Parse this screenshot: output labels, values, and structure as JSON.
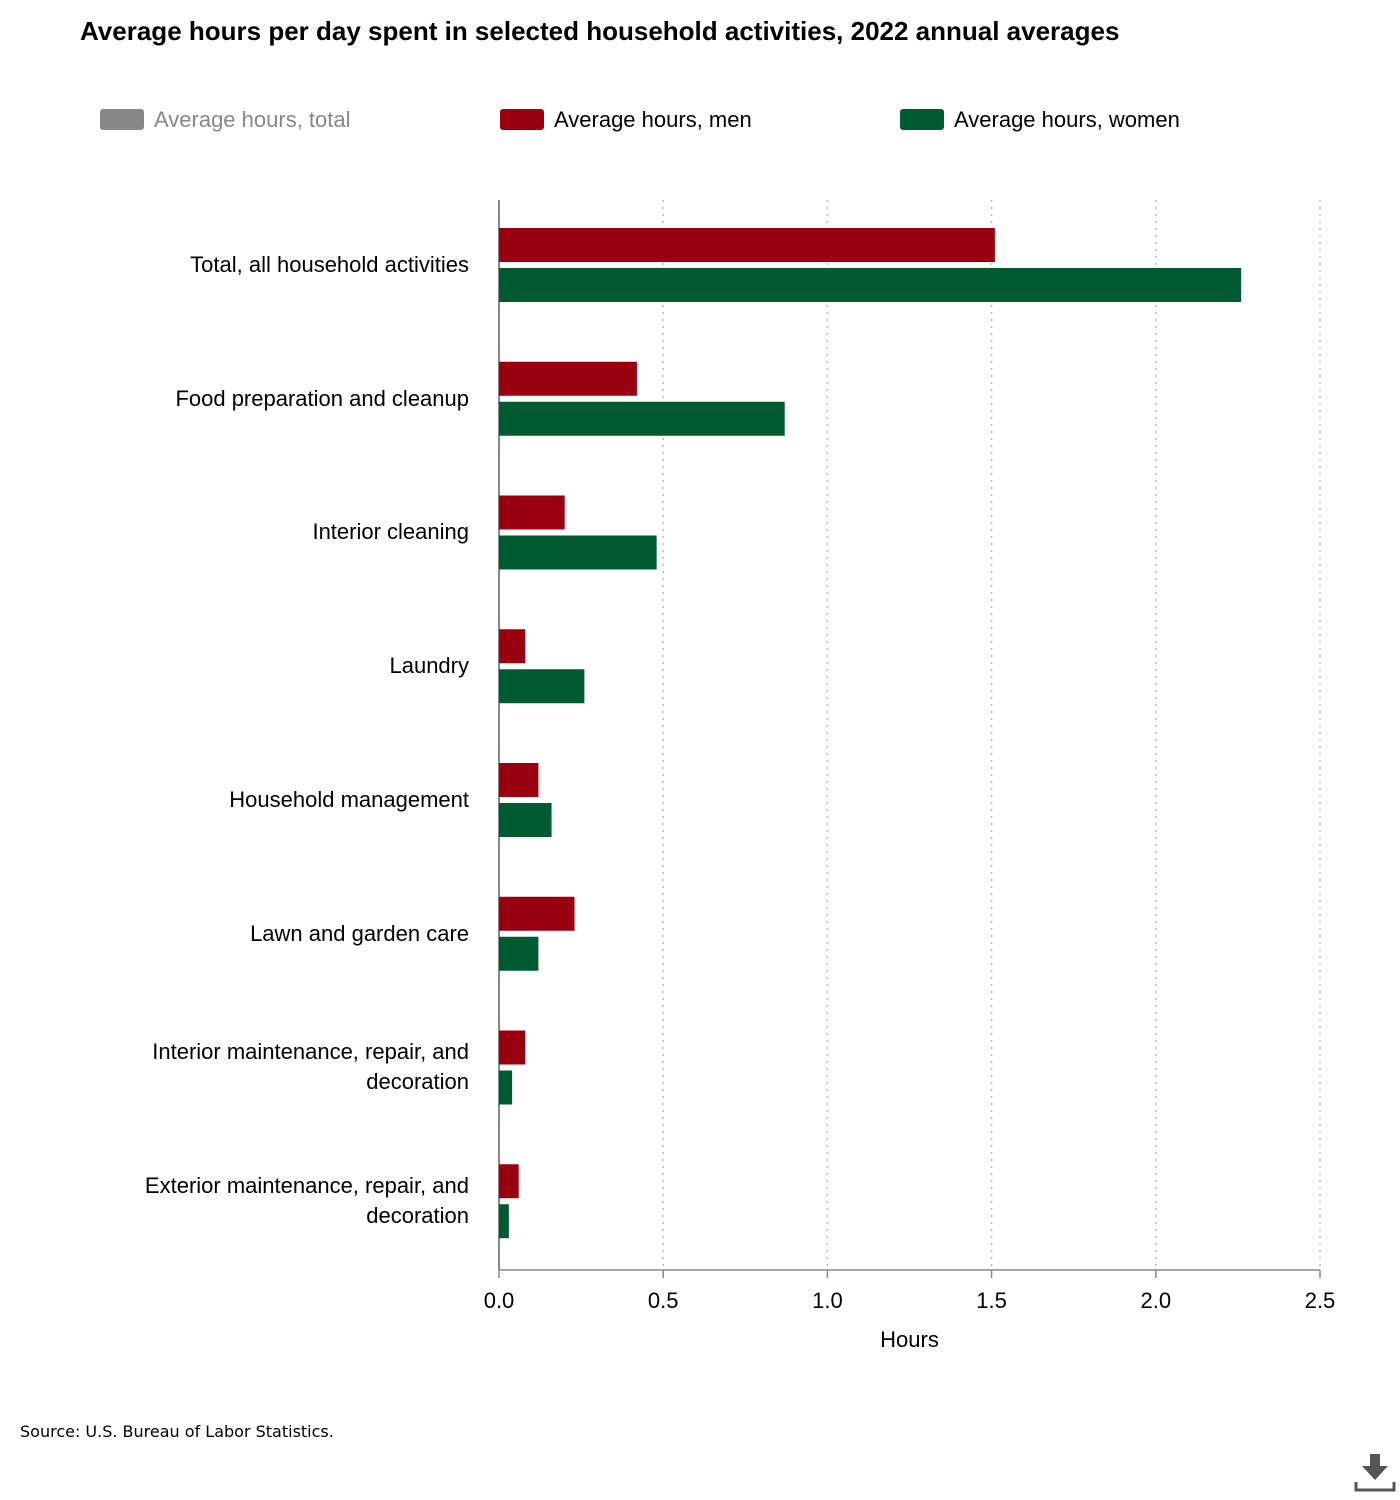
{
  "chart_data": {
    "type": "hbar",
    "title": "Average hours per day spent in selected household activities, 2022 annual averages",
    "categories": [
      "Total, all household activities",
      "Food preparation and cleanup",
      "Interior cleaning",
      "Laundry",
      "Household management",
      "Lawn and garden care",
      "Interior maintenance, repair, and decoration",
      "Exterior maintenance, repair, and decoration"
    ],
    "series": [
      {
        "name": "Average hours, total",
        "color": "#888888",
        "visible": false,
        "values": [
          null,
          null,
          null,
          null,
          null,
          null,
          null,
          null
        ]
      },
      {
        "name": "Average hours, men",
        "color": "#990010",
        "visible": true,
        "values": [
          1.51,
          0.42,
          0.2,
          0.08,
          0.12,
          0.23,
          0.08,
          0.06
        ]
      },
      {
        "name": "Average hours, women",
        "color": "#005a32",
        "visible": true,
        "values": [
          2.26,
          0.87,
          0.48,
          0.26,
          0.16,
          0.12,
          0.04,
          0.03
        ]
      }
    ],
    "xlabel": "Hours",
    "xlim": [
      0,
      2.5
    ],
    "xticks": [
      {
        "value": 0,
        "label": "0.0"
      },
      0.5,
      {
        "value": 1,
        "label": "1.0"
      },
      1.5,
      {
        "value": 2,
        "label": "2.0"
      },
      2.5
    ],
    "grid": true,
    "legend": "top",
    "source": "Source: U.S. Bureau of Labor Statistics."
  }
}
